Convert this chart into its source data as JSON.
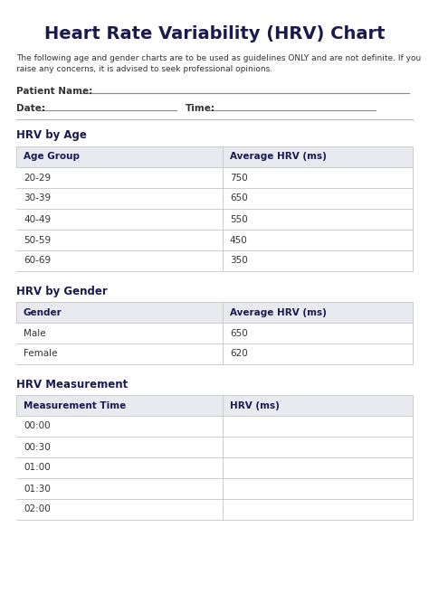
{
  "title": "Heart Rate Variability (HRV) Chart",
  "title_color": "#1a1a4e",
  "subtitle": "The following age and gender charts are to be used as guidelines ONLY and are not definite. If you\nraise any concerns, it is advised to seek professional opinions.",
  "patient_label": "Patient Name:",
  "date_label": "Date:",
  "time_label": "Time:",
  "section1_title": "HRV by Age",
  "age_headers": [
    "Age Group",
    "Average HRV (ms)"
  ],
  "age_rows": [
    [
      "20-29",
      "750"
    ],
    [
      "30-39",
      "650"
    ],
    [
      "40-49",
      "550"
    ],
    [
      "50-59",
      "450"
    ],
    [
      "60-69",
      "350"
    ]
  ],
  "section2_title": "HRV by Gender",
  "gender_headers": [
    "Gender",
    "Average HRV (ms)"
  ],
  "gender_rows": [
    [
      "Male",
      "650"
    ],
    [
      "Female",
      "620"
    ]
  ],
  "section3_title": "HRV Measurement",
  "measurement_headers": [
    "Measurement Time",
    "HRV (ms)"
  ],
  "measurement_rows": [
    [
      "00:00",
      ""
    ],
    [
      "00:30",
      ""
    ],
    [
      "01:00",
      ""
    ],
    [
      "01:30",
      ""
    ],
    [
      "02:00",
      ""
    ]
  ],
  "bg_color": "#ffffff",
  "table_header_bg": "#e8eaf0",
  "table_row_bg": "#ffffff",
  "table_border_color": "#cccccc",
  "text_color": "#333333",
  "header_text_color": "#1a1a4e",
  "section_title_color": "#1a1a4e",
  "col_split": 0.52,
  "fig_w": 4.74,
  "fig_h": 6.56,
  "dpi": 100
}
